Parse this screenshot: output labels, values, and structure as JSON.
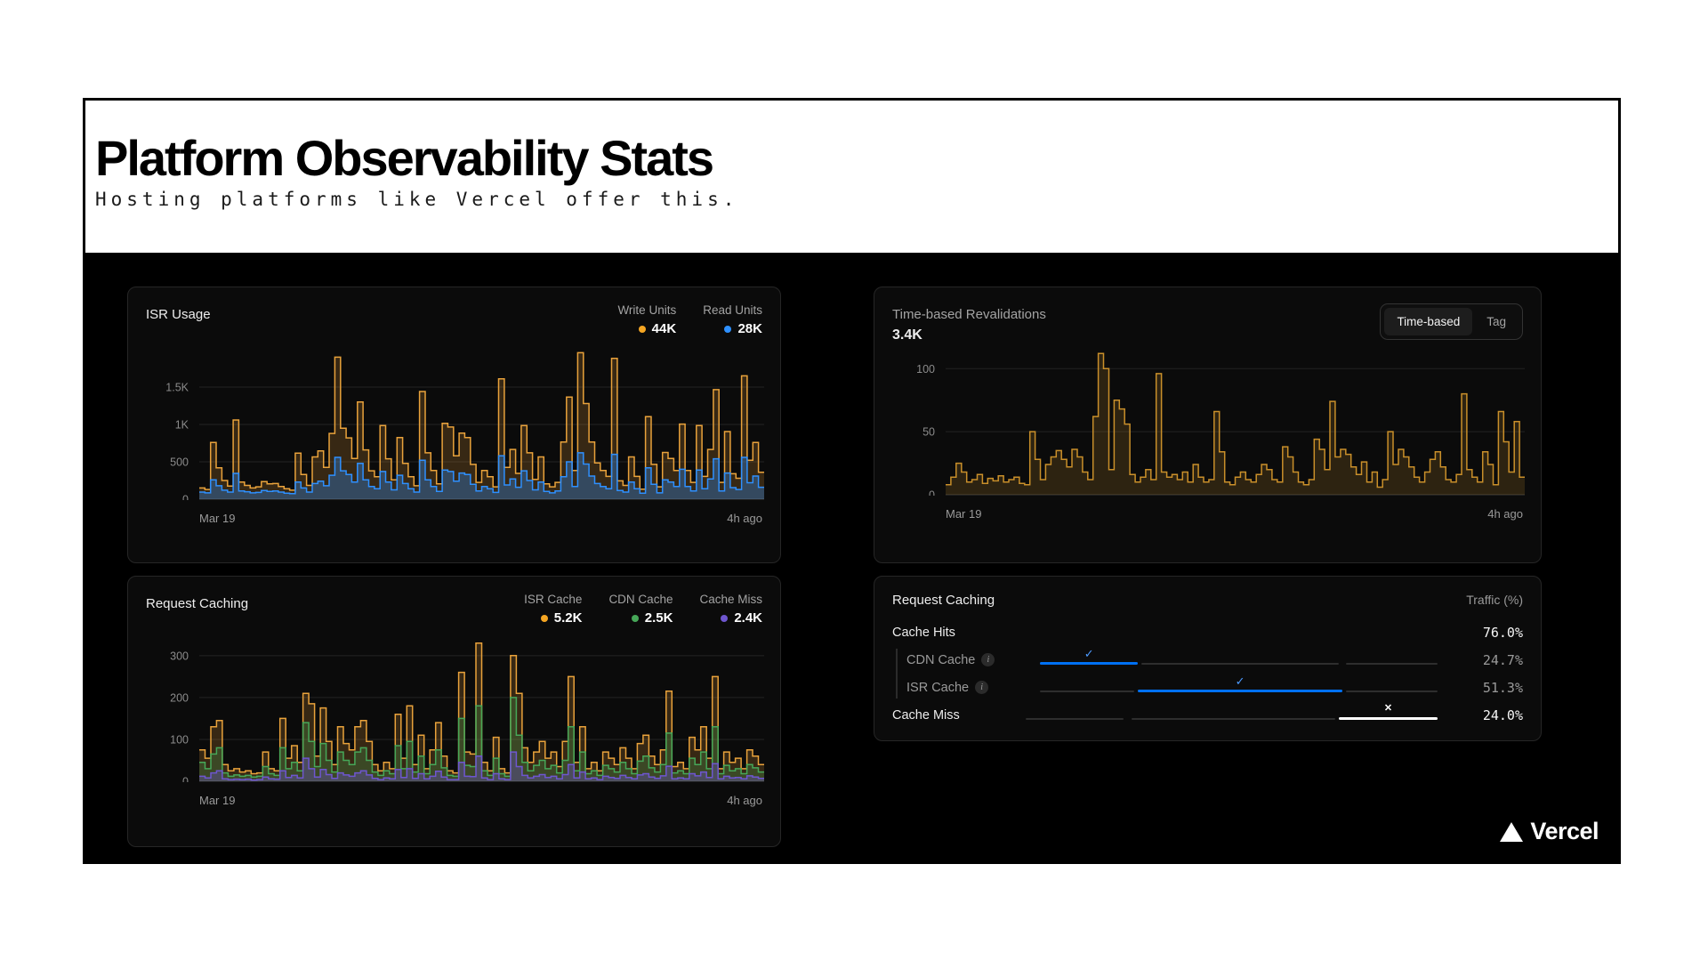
{
  "header": {
    "title": "Platform Observability Stats",
    "subtitle": "Hosting platforms like Vercel offer this."
  },
  "footer": {
    "brand": "Vercel"
  },
  "panels": {
    "isr_usage": {
      "title": "ISR Usage",
      "legend": [
        {
          "label": "Write Units",
          "value": "44K",
          "color": "#f5a623"
        },
        {
          "label": "Read Units",
          "value": "28K",
          "color": "#2e90ff"
        }
      ],
      "x_start": "Mar 19",
      "x_end": "4h ago"
    },
    "revalidations": {
      "title": "Time-based Revalidations",
      "value": "3.4K",
      "toggle": [
        {
          "label": "Time-based",
          "selected": true
        },
        {
          "label": "Tag",
          "selected": false
        }
      ],
      "x_start": "Mar 19",
      "x_end": "4h ago"
    },
    "request_caching_chart": {
      "title": "Request Caching",
      "legend": [
        {
          "label": "ISR Cache",
          "value": "5.2K",
          "color": "#f5a623"
        },
        {
          "label": "CDN Cache",
          "value": "2.5K",
          "color": "#46a758"
        },
        {
          "label": "Cache Miss",
          "value": "2.4K",
          "color": "#6e56cf"
        }
      ],
      "x_start": "Mar 19",
      "x_end": "4h ago"
    },
    "request_caching_table": {
      "title": "Request Caching",
      "column_header": "Traffic (%)",
      "breakpoints": [
        0,
        24.7,
        76.0,
        100
      ],
      "rows": [
        {
          "label": "Cache Hits",
          "value": "76.0%",
          "emphasis": true,
          "indent": false,
          "info": false,
          "bar": null
        },
        {
          "label": "CDN Cache",
          "value": "24.7%",
          "emphasis": false,
          "indent": true,
          "info": true,
          "bar": {
            "start": 0,
            "end": 24.7,
            "color": "#0070f3",
            "mark": "check"
          }
        },
        {
          "label": "ISR Cache",
          "value": "51.3%",
          "emphasis": false,
          "indent": true,
          "info": true,
          "bar": {
            "start": 24.7,
            "end": 76.0,
            "color": "#0070f3",
            "mark": "check"
          }
        },
        {
          "label": "Cache Miss",
          "value": "24.0%",
          "emphasis": true,
          "indent": false,
          "info": false,
          "bar": {
            "start": 76.0,
            "end": 100,
            "color": "#ffffff",
            "mark": "x"
          }
        }
      ]
    }
  },
  "chart_data": [
    {
      "id": "chart-isr-usage",
      "type": "area",
      "title": "ISR Usage",
      "ylim": [
        0,
        2000
      ],
      "x_start": "Mar 19",
      "x_end": "4h ago",
      "ticks": [
        {
          "v": 1500,
          "label": "1.5K"
        },
        {
          "v": 1000,
          "label": "1K"
        },
        {
          "v": 500,
          "label": "500"
        },
        {
          "v": 0,
          "label": "0"
        }
      ],
      "series": [
        {
          "name": "Write Units",
          "color": "#e9a23b",
          "fill_opacity": 0.2,
          "values": [
            150,
            130,
            760,
            420,
            250,
            175,
            1060,
            230,
            185,
            150,
            165,
            235,
            205,
            210,
            170,
            140,
            120,
            615,
            330,
            185,
            565,
            645,
            425,
            880,
            1900,
            950,
            820,
            545,
            1300,
            660,
            380,
            300,
            985,
            540,
            260,
            825,
            480,
            300,
            180,
            1440,
            620,
            385,
            205,
            1015,
            965,
            580,
            885,
            825,
            465,
            225,
            385,
            300,
            165,
            1610,
            425,
            665,
            345,
            985,
            620,
            265,
            565,
            205,
            165,
            225,
            765,
            1365,
            385,
            1960,
            1280,
            765,
            485,
            385,
            305,
            1885,
            245,
            185,
            565,
            305,
            135,
            1105,
            465,
            165,
            625,
            545,
            385,
            1005,
            385,
            225,
            985,
            305,
            665,
            1465,
            225,
            905,
            340,
            280,
            1650,
            520,
            760,
            360
          ]
        },
        {
          "name": "Read Units",
          "color": "#2e90ff",
          "fill_opacity": 0.32,
          "values": [
            95,
            85,
            260,
            180,
            120,
            95,
            345,
            110,
            100,
            85,
            90,
            115,
            105,
            110,
            95,
            80,
            75,
            230,
            150,
            95,
            210,
            240,
            180,
            320,
            560,
            380,
            330,
            230,
            480,
            260,
            170,
            140,
            370,
            230,
            125,
            320,
            210,
            140,
            95,
            520,
            260,
            170,
            105,
            390,
            370,
            240,
            350,
            330,
            200,
            110,
            170,
            140,
            90,
            580,
            190,
            270,
            160,
            380,
            250,
            125,
            230,
            105,
            85,
            110,
            300,
            500,
            170,
            620,
            470,
            310,
            210,
            170,
            140,
            600,
            115,
            95,
            230,
            140,
            80,
            420,
            200,
            85,
            260,
            230,
            170,
            400,
            170,
            110,
            390,
            140,
            270,
            540,
            110,
            350,
            155,
            130,
            560,
            220,
            310,
            160
          ]
        }
      ]
    },
    {
      "id": "chart-revalidations",
      "type": "area",
      "title": "Time-based Revalidations",
      "ylim": [
        0,
        115
      ],
      "x_start": "Mar 19",
      "x_end": "4h ago",
      "ticks": [
        {
          "v": 100,
          "label": "100"
        },
        {
          "v": 50,
          "label": "50"
        },
        {
          "v": 0,
          "label": "0"
        }
      ],
      "series": [
        {
          "name": "Time-based Revalidations",
          "color": "#c98f2a",
          "fill_opacity": 0.18,
          "values": [
            8,
            14,
            25,
            18,
            10,
            12,
            16,
            9,
            13,
            11,
            15,
            10,
            12,
            14,
            9,
            8,
            50,
            28,
            12,
            24,
            30,
            35,
            28,
            22,
            36,
            30,
            18,
            12,
            62,
            112,
            100,
            20,
            75,
            68,
            56,
            16,
            10,
            14,
            20,
            12,
            96,
            18,
            14,
            16,
            12,
            18,
            10,
            24,
            14,
            10,
            12,
            66,
            34,
            10,
            8,
            14,
            18,
            12,
            10,
            16,
            24,
            20,
            12,
            10,
            38,
            30,
            18,
            10,
            8,
            12,
            44,
            36,
            20,
            74,
            30,
            36,
            32,
            22,
            16,
            26,
            10,
            18,
            6,
            12,
            50,
            24,
            36,
            30,
            22,
            14,
            10,
            18,
            28,
            34,
            22,
            12,
            10,
            16,
            80,
            20,
            14,
            10,
            34,
            24,
            8,
            66,
            42,
            18,
            58,
            14
          ]
        }
      ]
    },
    {
      "id": "chart-request-caching",
      "type": "area",
      "title": "Request Caching",
      "ylim": [
        0,
        340
      ],
      "x_start": "Mar 19",
      "x_end": "4h ago",
      "ticks": [
        {
          "v": 300,
          "label": "300"
        },
        {
          "v": 200,
          "label": "200"
        },
        {
          "v": 100,
          "label": "100"
        },
        {
          "v": 0,
          "label": "0"
        }
      ],
      "series": [
        {
          "name": "ISR Cache",
          "color": "#e9a23b",
          "fill_opacity": 0.2,
          "values": [
            75,
            55,
            130,
            145,
            40,
            25,
            30,
            22,
            25,
            18,
            20,
            70,
            30,
            25,
            150,
            55,
            85,
            45,
            210,
            185,
            60,
            175,
            95,
            40,
            130,
            90,
            75,
            130,
            145,
            95,
            40,
            25,
            45,
            30,
            160,
            55,
            180,
            40,
            110,
            30,
            75,
            140,
            60,
            25,
            20,
            260,
            70,
            65,
            330,
            45,
            25,
            105,
            30,
            20,
            300,
            210,
            80,
            45,
            70,
            95,
            55,
            70,
            35,
            95,
            250,
            45,
            130,
            30,
            45,
            25,
            70,
            55,
            40,
            80,
            55,
            30,
            90,
            110,
            60,
            40,
            75,
            215,
            35,
            45,
            30,
            105,
            75,
            130,
            55,
            250,
            30,
            70,
            45,
            55,
            30,
            75,
            60,
            40
          ]
        },
        {
          "name": "CDN Cache",
          "color": "#46a758",
          "fill_opacity": 0.25,
          "values": [
            45,
            30,
            65,
            80,
            20,
            12,
            15,
            12,
            14,
            10,
            12,
            35,
            18,
            14,
            80,
            30,
            45,
            25,
            140,
            95,
            35,
            90,
            50,
            22,
            70,
            50,
            40,
            70,
            80,
            50,
            22,
            14,
            25,
            18,
            85,
            30,
            95,
            22,
            60,
            18,
            40,
            75,
            32,
            14,
            12,
            150,
            38,
            35,
            180,
            25,
            14,
            55,
            18,
            12,
            200,
            110,
            45,
            25,
            38,
            50,
            30,
            38,
            20,
            50,
            130,
            25,
            70,
            18,
            25,
            14,
            38,
            30,
            22,
            45,
            30,
            18,
            48,
            60,
            32,
            22,
            40,
            115,
            20,
            25,
            18,
            55,
            40,
            70,
            30,
            130,
            18,
            38,
            25,
            30,
            18,
            40,
            32,
            22
          ]
        },
        {
          "name": "Cache Miss",
          "color": "#6e56cf",
          "fill_opacity": 0.32,
          "values": [
            12,
            8,
            20,
            25,
            6,
            4,
            5,
            4,
            5,
            3,
            4,
            10,
            6,
            5,
            25,
            9,
            14,
            8,
            55,
            30,
            10,
            28,
            16,
            7,
            20,
            15,
            12,
            20,
            25,
            15,
            7,
            4,
            8,
            6,
            28,
            9,
            30,
            7,
            18,
            6,
            12,
            24,
            10,
            4,
            4,
            45,
            12,
            11,
            60,
            8,
            4,
            18,
            6,
            4,
            70,
            35,
            14,
            8,
            12,
            16,
            9,
            12,
            6,
            16,
            40,
            8,
            22,
            6,
            8,
            4,
            12,
            9,
            7,
            14,
            9,
            6,
            15,
            18,
            10,
            7,
            13,
            36,
            6,
            8,
            6,
            18,
            13,
            22,
            9,
            42,
            6,
            12,
            8,
            9,
            6,
            13,
            10,
            7
          ]
        }
      ]
    }
  ]
}
